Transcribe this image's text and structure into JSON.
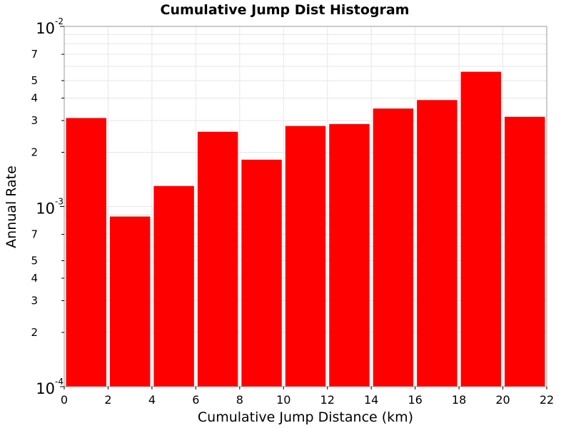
{
  "chart_data": {
    "type": "bar",
    "title": "Cumulative Jump Dist Histogram",
    "xlabel": "Cumulative Jump Distance (km)",
    "ylabel": "Annual Rate",
    "xlim": [
      0,
      22
    ],
    "ylim": [
      0.0001,
      0.01
    ],
    "yscale": "log",
    "grid": true,
    "bar_color": "#ff0000",
    "x_ticks": [
      "0",
      "2",
      "4",
      "6",
      "8",
      "10",
      "12",
      "14",
      "16",
      "18",
      "20",
      "22"
    ],
    "y_major_ticks": [
      {
        "value": 0.0001,
        "base": "10",
        "exp": "-4"
      },
      {
        "value": 0.001,
        "base": "10",
        "exp": "-3"
      },
      {
        "value": 0.01,
        "base": "10",
        "exp": "-2"
      }
    ],
    "y_minor_ticks": [
      {
        "value": 0.0002,
        "label": "2"
      },
      {
        "value": 0.0003,
        "label": "3"
      },
      {
        "value": 0.0004,
        "label": "4"
      },
      {
        "value": 0.0005,
        "label": "5"
      },
      {
        "value": 0.0007,
        "label": "7"
      },
      {
        "value": 0.002,
        "label": "2"
      },
      {
        "value": 0.003,
        "label": "3"
      },
      {
        "value": 0.004,
        "label": "4"
      },
      {
        "value": 0.005,
        "label": "5"
      },
      {
        "value": 0.007,
        "label": "7"
      }
    ],
    "bins": [
      {
        "x0": 0,
        "x1": 2,
        "value": 0.0031
      },
      {
        "x0": 2,
        "x1": 4,
        "value": 0.00088
      },
      {
        "x0": 4,
        "x1": 6,
        "value": 0.0013
      },
      {
        "x0": 6,
        "x1": 8,
        "value": 0.0026
      },
      {
        "x0": 8,
        "x1": 10,
        "value": 0.00182
      },
      {
        "x0": 10,
        "x1": 12,
        "value": 0.0028
      },
      {
        "x0": 12,
        "x1": 14,
        "value": 0.00287
      },
      {
        "x0": 14,
        "x1": 16,
        "value": 0.0035
      },
      {
        "x0": 16,
        "x1": 18,
        "value": 0.0039
      },
      {
        "x0": 18,
        "x1": 20,
        "value": 0.0056
      },
      {
        "x0": 20,
        "x1": 22,
        "value": 0.00315
      }
    ]
  }
}
